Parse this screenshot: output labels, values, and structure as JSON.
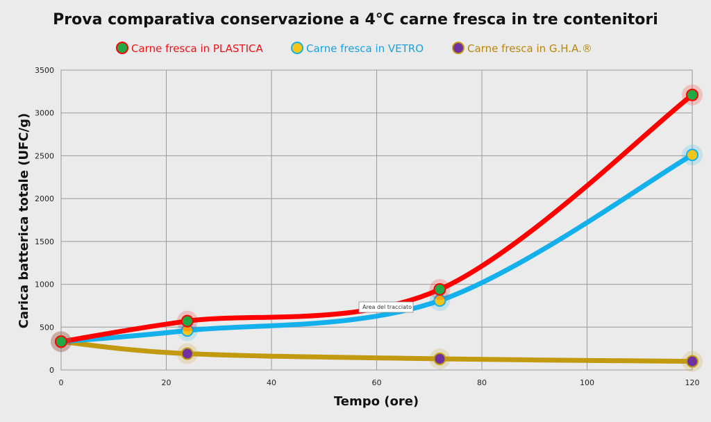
{
  "chart_data": {
    "type": "line",
    "title": "Prova comparativa conservazione a 4°C carne fresca in tre contenitori",
    "xlabel": "Tempo (ore)",
    "ylabel": "Carica batterica totale (UFC/g)",
    "xlim": [
      0,
      120
    ],
    "ylim": [
      0,
      3500
    ],
    "x_ticks": [
      0,
      20,
      40,
      60,
      80,
      100,
      120
    ],
    "y_ticks": [
      0,
      500,
      1000,
      1500,
      2000,
      2500,
      3000,
      3500
    ],
    "grid": true,
    "legend_position": "top",
    "tooltip": "Area del tracciato",
    "series": [
      {
        "name": "Carne fresca in PLASTICA",
        "color": "#ff0000",
        "marker_color": "#22a845",
        "label_color": "#e8141a",
        "x": [
          0,
          24,
          72,
          120
        ],
        "y": [
          330,
          570,
          940,
          3210
        ]
      },
      {
        "name": "Carne fresca in VETRO",
        "color": "#13b0ec",
        "marker_color": "#f5c518",
        "label_color": "#1aa0e0",
        "x": [
          0,
          24,
          72,
          120
        ],
        "y": [
          330,
          460,
          810,
          2510
        ]
      },
      {
        "name": "Carne fresca in G.H.A.®",
        "color": "#c29a10",
        "marker_color": "#7030a0",
        "label_color": "#b8860b",
        "x": [
          0,
          24,
          72,
          120
        ],
        "y": [
          330,
          190,
          130,
          100
        ]
      }
    ]
  }
}
